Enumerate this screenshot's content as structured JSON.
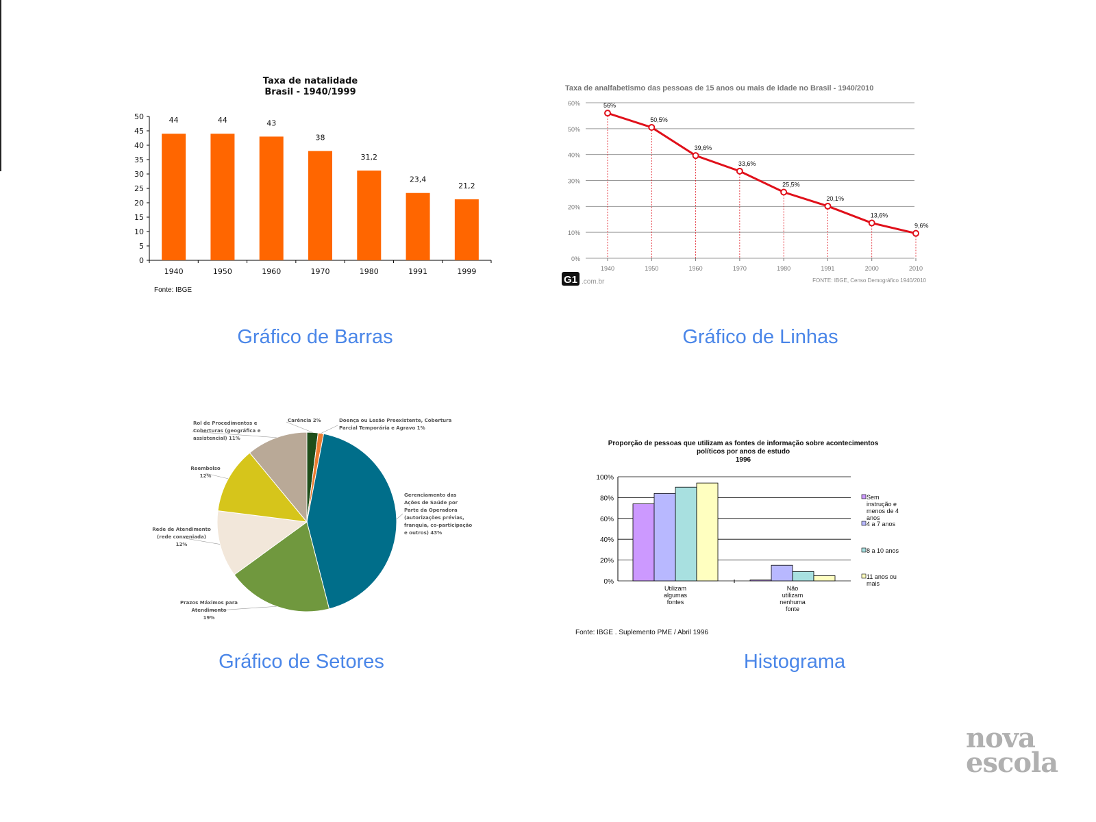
{
  "captions": {
    "bar": "Gráfico de Barras",
    "line": "Gráfico de Linhas",
    "pie": "Gráfico de Setores",
    "hist": "Histograma"
  },
  "logo": {
    "line1": "nova",
    "line2": "escola"
  },
  "chart_data": [
    {
      "type": "bar",
      "title": "Taxa de natalidade",
      "subtitle": "Brasil - 1940/1999",
      "categories": [
        "1940",
        "1950",
        "1960",
        "1970",
        "1980",
        "1991",
        "1999"
      ],
      "values": [
        44,
        44,
        43,
        38,
        31.2,
        23.4,
        21.2
      ],
      "value_labels": [
        "44",
        "44",
        "43",
        "38",
        "31,2",
        "23,4",
        "21,2"
      ],
      "ylim": [
        0,
        50
      ],
      "yticks": [
        "0",
        "5",
        "10",
        "15",
        "20",
        "25",
        "30",
        "35",
        "40",
        "45",
        "50"
      ],
      "grid": false,
      "color": "#ff6600",
      "source": "Fonte: IBGE"
    },
    {
      "type": "line",
      "title": "Taxa de analfabetismo das pessoas de 15 anos ou mais de idade no Brasil - 1940/2010",
      "x": [
        "1940",
        "1950",
        "1960",
        "1970",
        "1980",
        "1991",
        "2000",
        "2010"
      ],
      "values": [
        56,
        50.5,
        39.6,
        33.6,
        25.5,
        20.1,
        13.6,
        9.6
      ],
      "value_labels": [
        "56%",
        "50,5%",
        "39,6%",
        "33,6%",
        "25,5%",
        "20,1%",
        "13,6%",
        "9,6%"
      ],
      "ylim": [
        0,
        60
      ],
      "yticks": [
        "0%",
        "10%",
        "20%",
        "30%",
        "40%",
        "50%",
        "60%"
      ],
      "grid": true,
      "color": "#e0101a",
      "brand": {
        "mark": "G1",
        "suffix": ".com.br"
      },
      "source": "FONTE: IBGE, Censo Demográfico 1940/2010"
    },
    {
      "type": "pie",
      "slices": [
        {
          "label_lines": [
            "Carência 2%"
          ],
          "value": 2,
          "color": "#1f4e1a"
        },
        {
          "label_lines": [
            "Doença ou Lesão Preexistente, Cobertura",
            "Parcial Temporária e Agravo 1%"
          ],
          "value": 1,
          "color": "#ed7d31"
        },
        {
          "label_lines": [
            "Gerenciamento das",
            "Ações de Saúde por",
            "Parte da Operadora",
            "(autorizações prévias,",
            "franquia, co-participação",
            "e outros) 43%"
          ],
          "value": 43,
          "color": "#006e8a"
        },
        {
          "label_lines": [
            "Prazos Máximos para",
            "Atendimento",
            "19%"
          ],
          "value": 19,
          "color": "#70983e"
        },
        {
          "label_lines": [
            "Rede de Atendimento",
            "(rede conveniada)",
            "12%"
          ],
          "value": 12,
          "color": "#f2e7da"
        },
        {
          "label_lines": [
            "Reembolso",
            "12%"
          ],
          "value": 12,
          "color": "#d6c51b"
        },
        {
          "label_lines": [
            "Rol de Procedimentos e",
            "Coberturas (geográfica e",
            "assistencial)  11%"
          ],
          "value": 11,
          "color": "#b9a997"
        }
      ]
    },
    {
      "type": "bar",
      "title_lines": [
        "Proporção de pessoas que utilizam as  fontes de informação  sobre acontecimentos",
        "políticos por anos de estudo",
        "1996"
      ],
      "categories": [
        [
          "Utilizam",
          "algumas",
          "fontes"
        ],
        [
          "Não",
          "utilizam",
          "nenhuma",
          "fonte"
        ]
      ],
      "series": [
        {
          "name_lines": [
            "Sem",
            "instrução e",
            "menos de 4",
            "anos"
          ],
          "values": [
            74,
            0.84
          ],
          "color": "#cc99ff"
        },
        {
          "name_lines": [
            "4 a 7 anos"
          ],
          "values": [
            84,
            15
          ],
          "color": "#b8b8ff"
        },
        {
          "name_lines": [
            "8 a 10 anos"
          ],
          "values": [
            90,
            9
          ],
          "color": "#a8e0e0"
        },
        {
          "name_lines": [
            "11 anos ou",
            "mais"
          ],
          "values": [
            94,
            5
          ],
          "color": "#ffffc0"
        }
      ],
      "ylim": [
        0,
        100
      ],
      "yticks": [
        "0%",
        "20%",
        "40%",
        "60%",
        "80%",
        "100%"
      ],
      "grid": true,
      "source": "Fonte: IBGE . Suplemento PME  / Abril 1996"
    }
  ]
}
